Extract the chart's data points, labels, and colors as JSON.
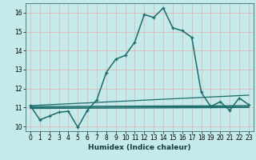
{
  "xlabel": "Humidex (Indice chaleur)",
  "background_color": "#c5eaea",
  "grid_color": "#e0b8b8",
  "line_color": "#1a6b6b",
  "xlim": [
    -0.5,
    23.5
  ],
  "ylim": [
    9.75,
    16.5
  ],
  "yticks": [
    10,
    11,
    12,
    13,
    14,
    15,
    16
  ],
  "xticks": [
    0,
    1,
    2,
    3,
    4,
    5,
    6,
    7,
    8,
    9,
    10,
    11,
    12,
    13,
    14,
    15,
    16,
    17,
    18,
    19,
    20,
    21,
    22,
    23
  ],
  "main_x": [
    0,
    1,
    2,
    3,
    4,
    5,
    6,
    7,
    8,
    9,
    10,
    11,
    12,
    13,
    14,
    15,
    16,
    17,
    18,
    19,
    20,
    21,
    22,
    23
  ],
  "main_y": [
    11.1,
    10.35,
    10.55,
    10.75,
    10.8,
    9.95,
    10.85,
    11.4,
    12.85,
    13.55,
    13.75,
    14.45,
    15.9,
    15.75,
    16.25,
    15.2,
    15.05,
    14.7,
    11.8,
    11.05,
    11.3,
    10.85,
    11.5,
    11.15
  ],
  "line2_x": [
    0,
    23
  ],
  "line2_y": [
    11.1,
    11.65
  ],
  "line3_x": [
    0,
    23
  ],
  "line3_y": [
    11.05,
    11.1
  ],
  "line4_x": [
    0,
    23
  ],
  "line4_y": [
    11.0,
    11.05
  ],
  "line5_x": [
    0,
    23
  ],
  "line5_y": [
    10.95,
    11.0
  ]
}
